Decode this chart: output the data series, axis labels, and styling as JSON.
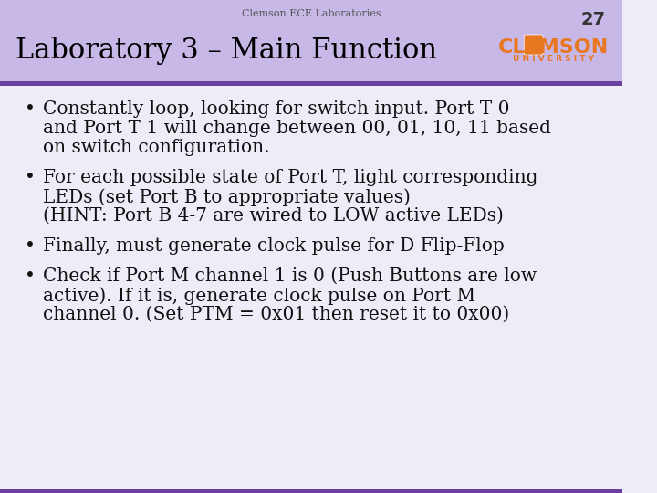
{
  "header_text": "Clemson ECE Laboratories",
  "slide_number": "27",
  "title": "Laboratory 3 – Main Function",
  "header_bg_color": "#9b7fc0",
  "header_top_color": "#c8b8e8",
  "title_color": "#000000",
  "body_bg_color": "#f0ecf7",
  "border_color": "#6b3fa0",
  "bullet_points": [
    {
      "bullet": "•",
      "lines": [
        "Constantly loop, looking for switch input. Port T 0",
        "and Port T 1 will change between 00, 01, 10, 11 based",
        "on switch configuration."
      ]
    },
    {
      "bullet": "•",
      "lines": [
        "For each possible state of Port T, light corresponding",
        "LEDs (set Port B to appropriate values)",
        "(HINT: Port B 4-7 are wired to LOW active LEDs)"
      ]
    },
    {
      "bullet": "•",
      "lines": [
        "Finally, must generate clock pulse for D Flip-Flop"
      ]
    },
    {
      "bullet": "•",
      "lines": [
        "Check if Port M channel 1 is 0 (Push Buttons are low",
        "active). If it is, generate clock pulse on Port M",
        "channel 0. (Set PTM = 0x01 then reset it to 0x00)"
      ]
    }
  ],
  "clemson_orange": "#e87722",
  "clemson_purple": "#522d80",
  "header_fontsize": 8,
  "title_fontsize": 22,
  "body_fontsize": 14.5,
  "slide_num_fontsize": 14
}
